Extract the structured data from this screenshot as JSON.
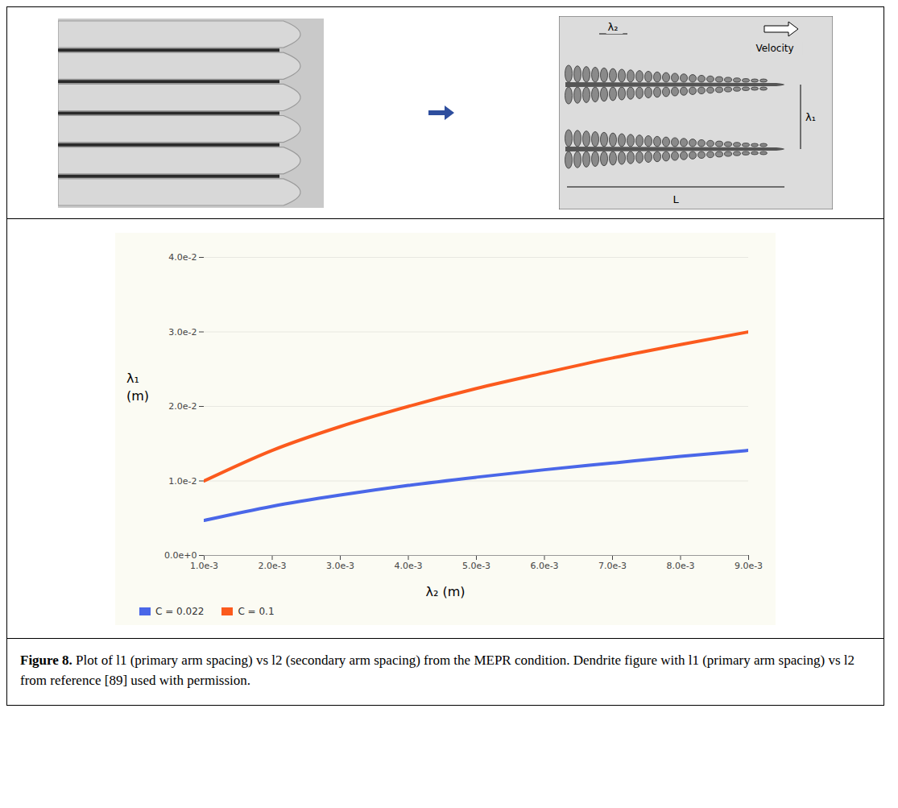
{
  "chart_data": {
    "type": "line",
    "xlabel": "λ₂ (m)",
    "ylabel": "λ₁ (m)",
    "x": [
      0.001,
      0.002,
      0.003,
      0.004,
      0.005,
      0.006,
      0.007,
      0.008,
      0.009
    ],
    "series": [
      {
        "name": "C = 0.022",
        "color": "#4a67e8",
        "values": [
          0.0047,
          0.0066,
          0.0081,
          0.0094,
          0.0105,
          0.0115,
          0.0124,
          0.0133,
          0.0141
        ]
      },
      {
        "name": "C = 0.1",
        "color": "#fb5a1d",
        "values": [
          0.01,
          0.0141,
          0.0173,
          0.02,
          0.0224,
          0.0245,
          0.0265,
          0.0283,
          0.03
        ]
      }
    ],
    "xlim": [
      0.001,
      0.009
    ],
    "xticks": [
      {
        "value": 0.001,
        "label": "1.0e-3"
      },
      {
        "value": 0.002,
        "label": "2.0e-3"
      },
      {
        "value": 0.003,
        "label": "3.0e-3"
      },
      {
        "value": 0.004,
        "label": "4.0e-3"
      },
      {
        "value": 0.005,
        "label": "5.0e-3"
      },
      {
        "value": 0.006,
        "label": "6.0e-3"
      },
      {
        "value": 0.007,
        "label": "7.0e-3"
      },
      {
        "value": 0.008,
        "label": "8.0e-3"
      },
      {
        "value": 0.009,
        "label": "9.0e-3"
      }
    ],
    "ylim": [
      0,
      0.04
    ],
    "yticks": [
      {
        "value": 0,
        "label": "0.0e+0"
      },
      {
        "value": 0.01,
        "label": "1.0e-2"
      },
      {
        "value": 0.02,
        "label": "2.0e-2"
      },
      {
        "value": 0.03,
        "label": "3.0e-2"
      },
      {
        "value": 0.04,
        "label": "4.0e-2"
      }
    ],
    "grid": true,
    "legend": "bottom-left"
  },
  "figure": {
    "diagram_labels": {
      "secondary_spacing": "λ₂",
      "velocity": "Velocity",
      "primary_spacing": "λ₁",
      "length": "L"
    },
    "caption_label": "Figure 8.",
    "caption": "Plot of l1 (primary arm spacing) vs l2 (secondary arm spacing) from the MEPR condition. Dendrite figure with l1 (primary arm spacing) vs l2 from reference [89] used with permission."
  }
}
